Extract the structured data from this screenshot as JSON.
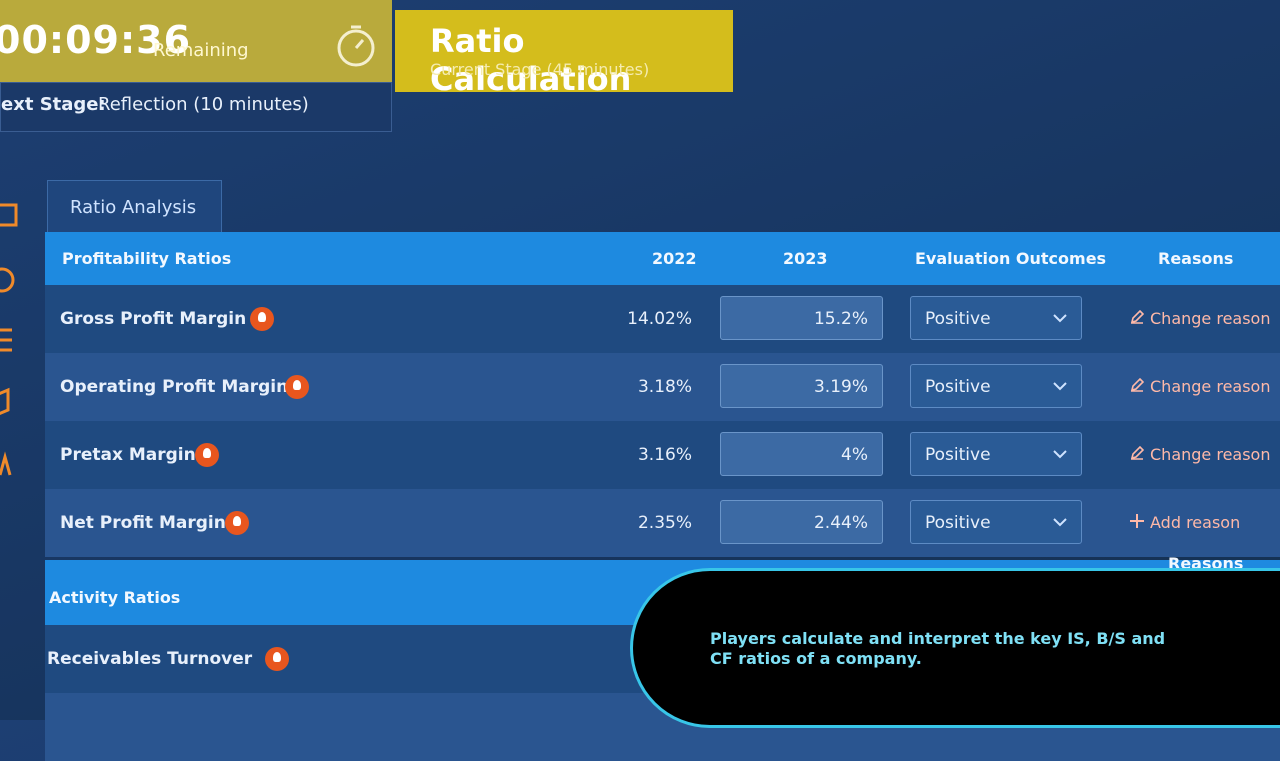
{
  "timer": {
    "time": "00:09:36",
    "label": "Remaining",
    "next_label": "ext Stage:",
    "next_value": "Reflection (10 minutes)"
  },
  "stage": {
    "title": "Ratio Calculation",
    "subtitle": "Current Stage (45 minutes)"
  },
  "tab": "Ratio Analysis",
  "profitability": {
    "title": "Profitability Ratios",
    "columns": [
      "2022",
      "2023",
      "Evaluation Outcomes",
      "Reasons"
    ],
    "rows": [
      {
        "name": "Gross Profit Margin",
        "y2022": "14.02%",
        "y2023": "15.2%",
        "outcome": "Positive",
        "reason": "Change reason"
      },
      {
        "name": "Operating Profit Margin",
        "y2022": "3.18%",
        "y2023": "3.19%",
        "outcome": "Positive",
        "reason": "Change reason"
      },
      {
        "name": "Pretax Margin",
        "y2022": "3.16%",
        "y2023": "4%",
        "outcome": "Positive",
        "reason": "Change reason"
      },
      {
        "name": "Net Profit Margin",
        "y2022": "2.35%",
        "y2023": "2.44%",
        "outcome": "Positive",
        "reason": "Add reason"
      }
    ]
  },
  "activity": {
    "title": "Activity Ratios",
    "reasons_header": "Reasons",
    "rows": [
      {
        "name": "Receivables Turnover"
      }
    ]
  },
  "caption": "Players calculate and interpret the key IS, B/S and CF ratios of a company."
}
